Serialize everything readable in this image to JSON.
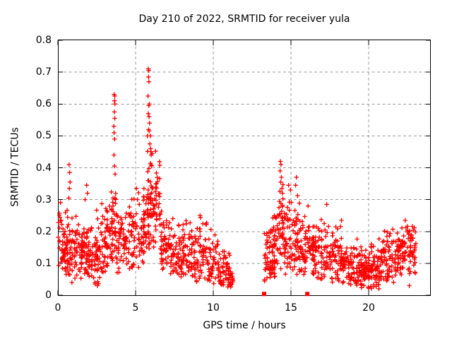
{
  "title": "Day 210 of 2022, SRMTID for receiver yula",
  "axes": {
    "xlabel": "GPS time / hours",
    "ylabel": "SRMTID / TECUs",
    "x_tick_labels": [
      "0",
      "5",
      "10",
      "15",
      "20"
    ],
    "y_tick_labels": [
      "0",
      "0.1",
      "0.2",
      "0.3",
      "0.4",
      "0.5",
      "0.6",
      "0.7",
      "0.8"
    ]
  },
  "colors": {
    "marker": "#ff0000",
    "grid": "#999999",
    "axis": "#000000",
    "background": "#ffffff"
  },
  "chart_data": {
    "type": "scatter",
    "title": "Day 210 of 2022, SRMTID for receiver yula",
    "xlabel": "GPS time / hours",
    "ylabel": "SRMTID / TECUs",
    "xlim": [
      0,
      24
    ],
    "ylim": [
      0,
      0.8
    ],
    "x_ticks": [
      0,
      5,
      10,
      15,
      20
    ],
    "y_ticks": [
      0,
      0.1,
      0.2,
      0.3,
      0.4,
      0.5,
      0.6,
      0.7,
      0.8
    ],
    "grid": true,
    "marker": "plus",
    "marker_color": "#ff0000",
    "data_gap_hours": [
      11.3,
      13.25
    ],
    "peak_value": [
      5.82,
      0.71
    ],
    "series": [
      {
        "name": "srmtid-points",
        "cluster_fields": "[xStartHour, xEndHour, count, yCenter, ySpread, yMin, yMax]",
        "clusters": [
          [
            0.0,
            0.55,
            50,
            0.15,
            0.055,
            0.06,
            0.3
          ],
          [
            0.55,
            1.0,
            46,
            0.14,
            0.06,
            0.04,
            0.31
          ],
          [
            1.0,
            1.6,
            55,
            0.13,
            0.05,
            0.05,
            0.26
          ],
          [
            1.6,
            2.1,
            50,
            0.14,
            0.055,
            0.05,
            0.3
          ],
          [
            2.1,
            2.8,
            55,
            0.13,
            0.055,
            0.03,
            0.3
          ],
          [
            2.8,
            3.4,
            50,
            0.165,
            0.06,
            0.07,
            0.33
          ],
          [
            3.4,
            3.8,
            42,
            0.2,
            0.065,
            0.09,
            0.35
          ],
          [
            3.8,
            4.5,
            55,
            0.16,
            0.055,
            0.07,
            0.32
          ],
          [
            4.5,
            5.3,
            55,
            0.17,
            0.06,
            0.08,
            0.33
          ],
          [
            5.3,
            5.75,
            45,
            0.215,
            0.07,
            0.1,
            0.4
          ],
          [
            5.75,
            6.05,
            50,
            0.3,
            0.1,
            0.12,
            0.56
          ],
          [
            6.05,
            6.6,
            50,
            0.28,
            0.07,
            0.15,
            0.46
          ],
          [
            6.6,
            7.2,
            50,
            0.15,
            0.05,
            0.07,
            0.28
          ],
          [
            7.2,
            8.0,
            60,
            0.13,
            0.05,
            0.05,
            0.27
          ],
          [
            8.0,
            8.7,
            55,
            0.13,
            0.05,
            0.05,
            0.25
          ],
          [
            8.7,
            9.6,
            65,
            0.13,
            0.055,
            0.04,
            0.26
          ],
          [
            9.6,
            10.4,
            55,
            0.1,
            0.045,
            0.035,
            0.22
          ],
          [
            10.4,
            11.05,
            50,
            0.075,
            0.035,
            0.02,
            0.15
          ],
          [
            11.05,
            11.3,
            16,
            0.05,
            0.02,
            0.02,
            0.09
          ],
          [
            13.25,
            13.7,
            40,
            0.12,
            0.055,
            0.04,
            0.27
          ],
          [
            13.7,
            14.2,
            50,
            0.15,
            0.06,
            0.05,
            0.3
          ],
          [
            14.2,
            14.55,
            36,
            0.2,
            0.075,
            0.08,
            0.37
          ],
          [
            14.55,
            15.15,
            50,
            0.16,
            0.065,
            0.06,
            0.33
          ],
          [
            15.15,
            15.65,
            45,
            0.16,
            0.065,
            0.06,
            0.34
          ],
          [
            15.65,
            16.5,
            70,
            0.13,
            0.055,
            0.04,
            0.28
          ],
          [
            16.5,
            17.4,
            65,
            0.12,
            0.05,
            0.05,
            0.24
          ],
          [
            17.4,
            18.3,
            65,
            0.11,
            0.045,
            0.04,
            0.23
          ],
          [
            18.3,
            19.3,
            70,
            0.095,
            0.04,
            0.03,
            0.2
          ],
          [
            19.3,
            20.1,
            75,
            0.075,
            0.035,
            0.02,
            0.16
          ],
          [
            20.1,
            20.9,
            75,
            0.08,
            0.04,
            0.02,
            0.18
          ],
          [
            20.9,
            21.8,
            70,
            0.105,
            0.045,
            0.04,
            0.21
          ],
          [
            21.8,
            22.6,
            65,
            0.13,
            0.05,
            0.05,
            0.235
          ],
          [
            22.6,
            23.05,
            40,
            0.13,
            0.05,
            0.05,
            0.22
          ]
        ],
        "points": [
          [
            0.72,
            0.41
          ],
          [
            0.75,
            0.385
          ],
          [
            0.78,
            0.355
          ],
          [
            0.74,
            0.335
          ],
          [
            0.7,
            0.305
          ],
          [
            0.9,
            0.04
          ],
          [
            1.85,
            0.345
          ],
          [
            1.9,
            0.32
          ],
          [
            1.75,
            0.3
          ],
          [
            2.4,
            0.035
          ],
          [
            2.55,
            0.03
          ],
          [
            2.3,
            0.055
          ],
          [
            3.62,
            0.63
          ],
          [
            3.66,
            0.625
          ],
          [
            3.64,
            0.61
          ],
          [
            3.67,
            0.6
          ],
          [
            3.63,
            0.575
          ],
          [
            3.66,
            0.555
          ],
          [
            3.6,
            0.53
          ],
          [
            3.62,
            0.51
          ],
          [
            3.65,
            0.49
          ],
          [
            3.61,
            0.44
          ],
          [
            3.64,
            0.405
          ],
          [
            3.68,
            0.38
          ],
          [
            5.05,
            0.335
          ],
          [
            5.12,
            0.3
          ],
          [
            5.82,
            0.71
          ],
          [
            5.84,
            0.705
          ],
          [
            5.83,
            0.685
          ],
          [
            5.86,
            0.67
          ],
          [
            5.8,
            0.625
          ],
          [
            5.88,
            0.6
          ],
          [
            5.85,
            0.595
          ],
          [
            5.82,
            0.57
          ],
          [
            5.87,
            0.56
          ],
          [
            5.9,
            0.54
          ],
          [
            5.84,
            0.52
          ],
          [
            5.95,
            0.5
          ],
          [
            5.92,
            0.475
          ],
          [
            5.97,
            0.46
          ],
          [
            6.0,
            0.44
          ],
          [
            9.15,
            0.25
          ],
          [
            11.2,
            0.035
          ],
          [
            14.32,
            0.42
          ],
          [
            14.36,
            0.41
          ],
          [
            14.3,
            0.39
          ],
          [
            14.38,
            0.37
          ],
          [
            14.34,
            0.355
          ],
          [
            14.42,
            0.335
          ],
          [
            14.45,
            0.32
          ],
          [
            14.85,
            0.345
          ],
          [
            14.97,
            0.33
          ],
          [
            15.35,
            0.37
          ],
          [
            15.3,
            0.345
          ],
          [
            16.1,
            0.28
          ],
          [
            17.3,
            0.285
          ],
          [
            18.25,
            0.235
          ],
          [
            22.35,
            0.235
          ],
          [
            22.62,
            0.03
          ]
        ]
      },
      {
        "name": "flag-squares",
        "marker": "filled-square",
        "points": [
          [
            13.27,
            0.004
          ],
          [
            16.05,
            0.004
          ]
        ]
      }
    ]
  }
}
